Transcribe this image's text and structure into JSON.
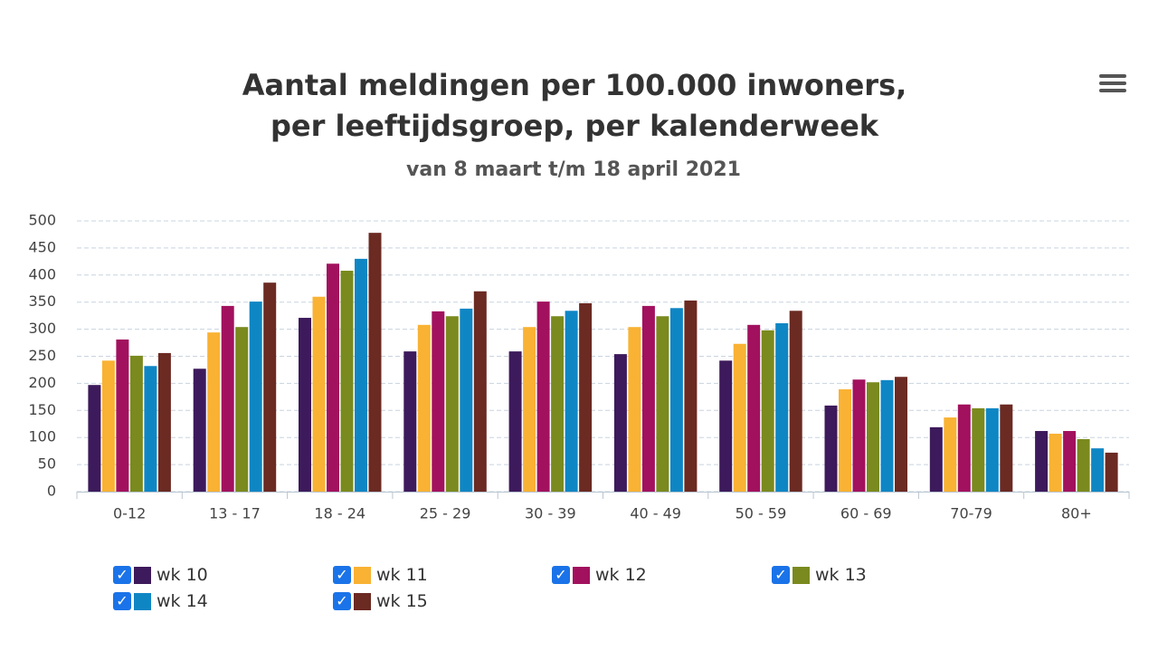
{
  "chart_data": {
    "type": "bar",
    "title": "Aantal meldingen per 100.000 inwoners, per leeftijdsgroep, per kalenderweek",
    "subtitle": "van 8 maart t/m 18 april 2021",
    "categories": [
      "0-12",
      "13 - 17",
      "18 - 24",
      "25 - 29",
      "30 - 39",
      "40 - 49",
      "50 - 59",
      "60 - 69",
      "70-79",
      "80+"
    ],
    "series": [
      {
        "name": "wk 10",
        "color": "#3d1a5b",
        "values": [
          197,
          227,
          321,
          259,
          259,
          254,
          242,
          159,
          119,
          112
        ]
      },
      {
        "name": "wk 11",
        "color": "#f9b233",
        "values": [
          242,
          294,
          360,
          308,
          304,
          304,
          273,
          189,
          137,
          107
        ]
      },
      {
        "name": "wk 12",
        "color": "#a2115e",
        "values": [
          281,
          343,
          421,
          333,
          351,
          343,
          308,
          207,
          161,
          112
        ]
      },
      {
        "name": "wk 13",
        "color": "#7a8a1e",
        "values": [
          251,
          304,
          408,
          324,
          324,
          324,
          298,
          202,
          154,
          97
        ]
      },
      {
        "name": "wk 14",
        "color": "#0f86c4",
        "values": [
          232,
          351,
          430,
          338,
          334,
          339,
          311,
          206,
          154,
          80
        ]
      },
      {
        "name": "wk 15",
        "color": "#6b2a22",
        "values": [
          256,
          386,
          478,
          370,
          348,
          353,
          334,
          212,
          161,
          72
        ]
      }
    ],
    "ylim": [
      0,
      500
    ],
    "yticks": [
      0,
      50,
      100,
      150,
      200,
      250,
      300,
      350,
      400,
      450,
      500
    ],
    "grid": true
  }
}
